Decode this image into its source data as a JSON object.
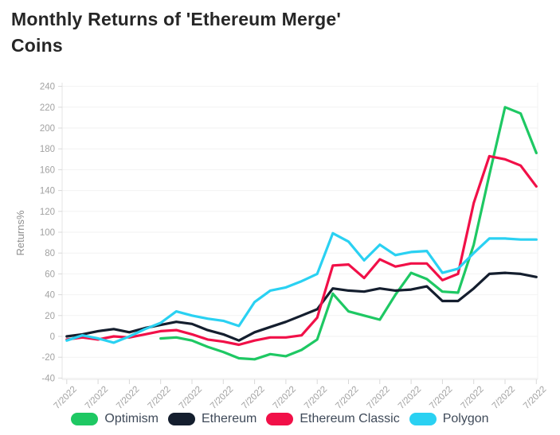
{
  "title": "Monthly Returns of 'Ethereum Merge' Coins",
  "y_axis_label": "Returns%",
  "chart_data": {
    "type": "line",
    "title": "Monthly Returns of 'Ethereum Merge' Coins",
    "xlabel": "",
    "ylabel": "Returns%",
    "ylim": [
      -40,
      240
    ],
    "grid": true,
    "legend_position": "bottom",
    "x_days": [
      1,
      2,
      3,
      4,
      5,
      6,
      7,
      8,
      9,
      10,
      11,
      12,
      13,
      14,
      15,
      16,
      17,
      18,
      19,
      20,
      21,
      22,
      23,
      24,
      25,
      26,
      27,
      28,
      29,
      30,
      31
    ],
    "x_tick_labels": [
      "7/2022",
      "7/2022",
      "7/2022",
      "7/2022",
      "7/2022",
      "7/2022",
      "7/2022",
      "7/2022",
      "7/2022",
      "7/2022",
      "7/2022",
      "7/2022",
      "7/2022",
      "7/2022",
      "7/2022",
      "7/2022"
    ],
    "y_ticks": [
      240,
      220,
      200,
      180,
      160,
      140,
      120,
      100,
      80,
      60,
      40,
      20,
      0,
      -20,
      -40
    ],
    "series": [
      {
        "name": "Optimism",
        "color": "#1ec863",
        "values": [
          null,
          null,
          null,
          null,
          null,
          null,
          -2,
          -1,
          -4,
          -10,
          -15,
          -21,
          -22,
          -17,
          -19,
          -13,
          -3,
          41,
          24,
          20,
          16,
          40,
          61,
          55,
          43,
          42,
          88,
          155,
          220,
          214,
          176
        ]
      },
      {
        "name": "Ethereum",
        "color": "#141e2e",
        "values": [
          0,
          2,
          5,
          7,
          4,
          8,
          11,
          14,
          12,
          6,
          2,
          -4,
          4,
          9,
          14,
          20,
          26,
          46,
          44,
          43,
          46,
          44,
          45,
          48,
          34,
          34,
          46,
          60,
          61,
          60,
          57
        ]
      },
      {
        "name": "Ethereum Classic",
        "color": "#f11048",
        "values": [
          -3,
          -1,
          -3,
          0,
          -1,
          2,
          5,
          6,
          2,
          -3,
          -5,
          -8,
          -4,
          -1,
          -1,
          1,
          18,
          68,
          69,
          56,
          74,
          67,
          70,
          70,
          54,
          60,
          128,
          173,
          170,
          164,
          144
        ]
      },
      {
        "name": "Polygon",
        "color": "#2ad1f2",
        "values": [
          -4,
          1,
          -2,
          -6,
          0,
          7,
          13,
          24,
          20,
          17,
          15,
          10,
          33,
          44,
          47,
          53,
          60,
          99,
          91,
          73,
          88,
          78,
          81,
          82,
          61,
          65,
          80,
          94,
          94,
          93,
          93
        ]
      }
    ]
  },
  "colors": {
    "grid": "#f2f2f2",
    "axis": "#e4e4e4",
    "tick": "#d8d8d8",
    "tick_text": "#a2a2a2",
    "axis_title_text": "#8f8f8f"
  }
}
